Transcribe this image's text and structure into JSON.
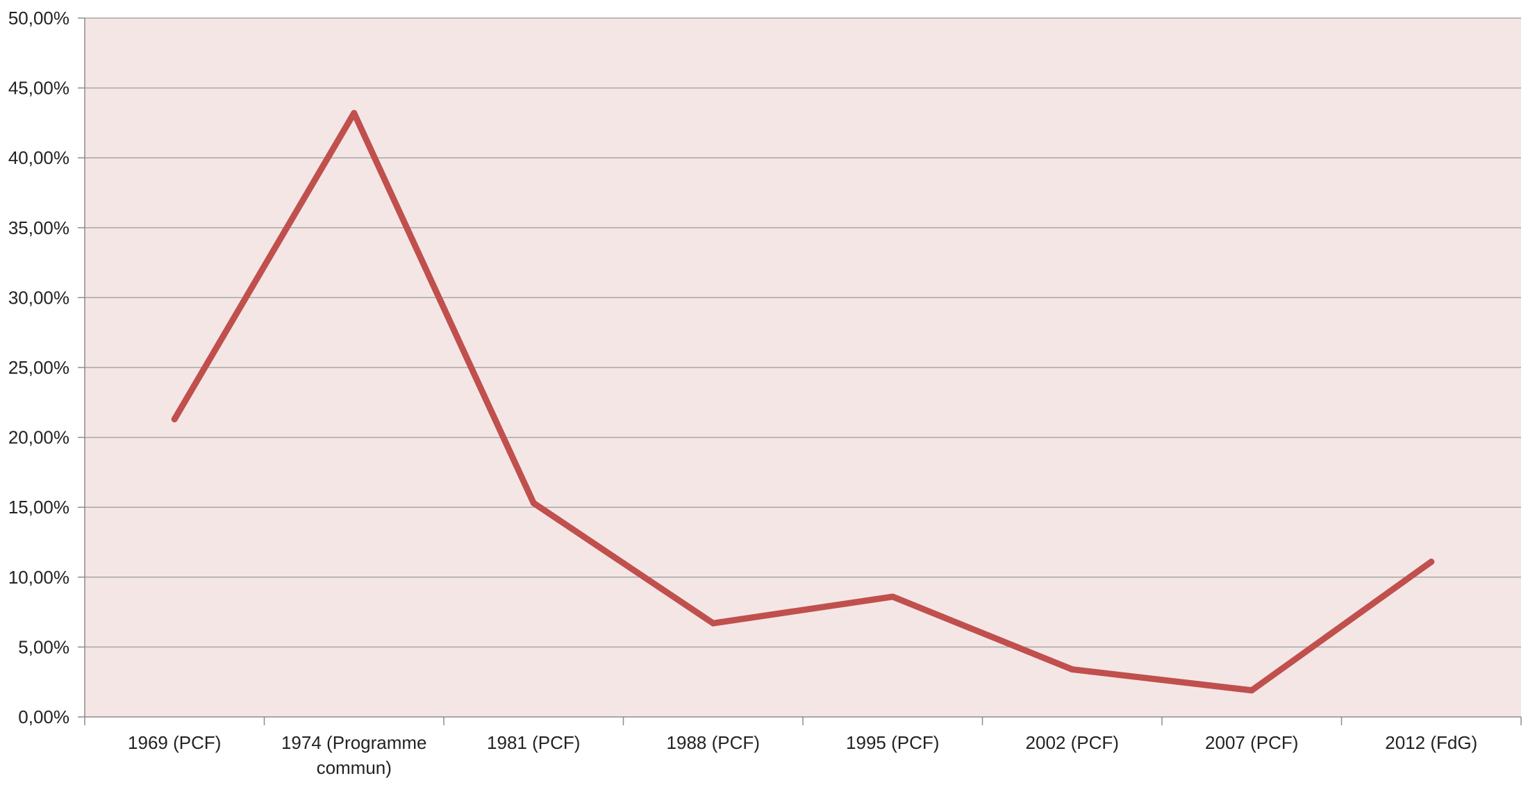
{
  "chart_data": {
    "type": "line",
    "title": "",
    "xlabel": "",
    "ylabel": "",
    "categories": [
      [
        "1969 (PCF)"
      ],
      [
        "1974 (Programme",
        "commun)"
      ],
      [
        "1981 (PCF)"
      ],
      [
        "1988 (PCF)"
      ],
      [
        "1995 (PCF)"
      ],
      [
        "2002 (PCF)"
      ],
      [
        "2007 (PCF)"
      ],
      [
        "2012 (FdG)"
      ]
    ],
    "series": [
      {
        "values": [
          21.3,
          43.2,
          15.3,
          6.7,
          8.6,
          3.4,
          1.9,
          11.1
        ]
      }
    ],
    "ylim": [
      0,
      50
    ],
    "yticks": [
      0,
      5,
      10,
      15,
      20,
      25,
      30,
      35,
      40,
      45,
      50
    ],
    "ytick_labels": [
      "0,00%",
      "5,00%",
      "10,00%",
      "15,00%",
      "20,00%",
      "25,00%",
      "30,00%",
      "35,00%",
      "40,00%",
      "45,00%",
      "50,00%"
    ],
    "grid": true,
    "legend": "none",
    "colors": {
      "plot_background": "#f5e6e6",
      "line": "#c0504d",
      "gridline": "#a6a6a6",
      "axis": "#8c8c8c"
    }
  }
}
